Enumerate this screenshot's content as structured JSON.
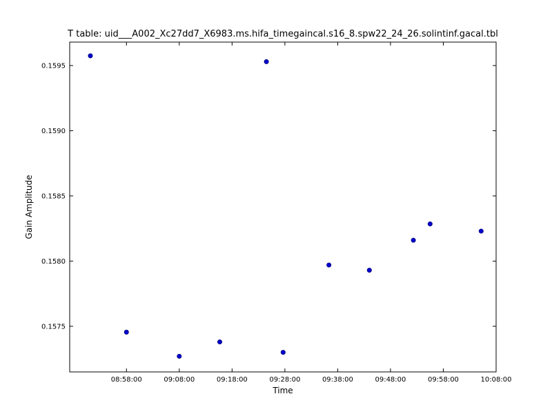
{
  "chart_data": {
    "type": "scatter",
    "title": "T table: uid___A002_Xc27dd7_X6983.ms.hifa_timegaincal.s16_8.spw22_24_26.solintinf.gacal.tbl",
    "xlabel": "Time",
    "ylabel": "Gain Amplitude",
    "xlim": [
      "08:47:15",
      "10:08:00"
    ],
    "ylim": [
      0.15715,
      0.15968
    ],
    "x_ticks": [
      "08:58:00",
      "09:08:00",
      "09:18:00",
      "09:28:00",
      "09:38:00",
      "09:48:00",
      "09:58:00",
      "10:08:00"
    ],
    "y_ticks": [
      "0.1575",
      "0.1580",
      "0.1585",
      "0.1590",
      "0.1595"
    ],
    "grid": false,
    "series": [
      {
        "marker_color": "#0000cc",
        "points": [
          {
            "x": "08:51:10",
            "y": 0.159575
          },
          {
            "x": "08:58:00",
            "y": 0.157455
          },
          {
            "x": "09:08:00",
            "y": 0.15727
          },
          {
            "x": "09:15:40",
            "y": 0.15738
          },
          {
            "x": "09:24:30",
            "y": 0.15953
          },
          {
            "x": "09:27:40",
            "y": 0.1573
          },
          {
            "x": "09:36:20",
            "y": 0.15797
          },
          {
            "x": "09:44:00",
            "y": 0.15793
          },
          {
            "x": "09:52:20",
            "y": 0.15816
          },
          {
            "x": "09:55:30",
            "y": 0.158285
          },
          {
            "x": "10:05:10",
            "y": 0.15823
          }
        ]
      }
    ]
  }
}
